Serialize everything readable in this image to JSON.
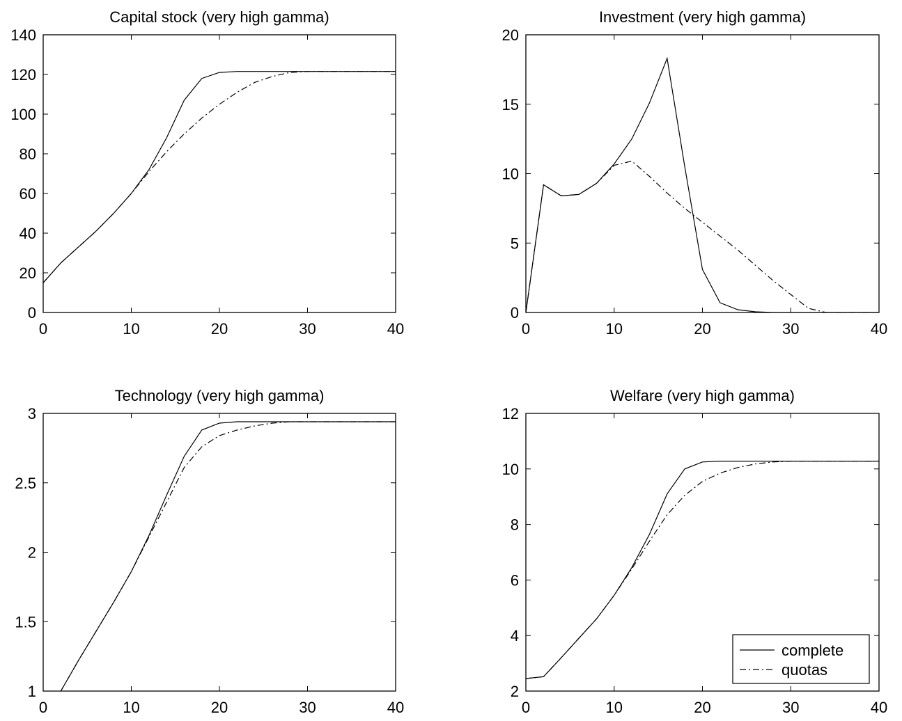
{
  "chart_data": [
    {
      "type": "line",
      "title": "Capital stock (very high gamma)",
      "xlim": [
        0,
        40
      ],
      "ylim": [
        0,
        140
      ],
      "xticks": [
        0,
        10,
        20,
        30,
        40
      ],
      "yticks": [
        0,
        20,
        40,
        60,
        80,
        100,
        120,
        140
      ],
      "grid": false,
      "x": [
        0,
        2,
        4,
        6,
        8,
        10,
        12,
        14,
        16,
        18,
        20,
        22,
        24,
        26,
        28,
        30,
        32,
        34,
        36,
        38,
        40
      ],
      "series": [
        {
          "name": "complete",
          "style": "solid",
          "values": [
            15,
            25,
            33,
            41,
            50,
            60,
            72,
            88,
            107,
            118,
            121,
            121.5,
            121.5,
            121.5,
            121.5,
            121.5,
            121.5,
            121.5,
            121.5,
            121.5,
            121.5
          ]
        },
        {
          "name": "quotas",
          "style": "dashdot",
          "values": [
            15,
            25,
            33,
            41,
            50,
            60,
            71,
            81,
            90,
            98,
            105,
            111,
            116,
            119,
            121,
            121.5,
            121.5,
            121.5,
            121.5,
            121.5,
            121.5
          ]
        }
      ]
    },
    {
      "type": "line",
      "title": "Investment (very high gamma)",
      "xlim": [
        0,
        40
      ],
      "ylim": [
        0,
        20
      ],
      "xticks": [
        0,
        10,
        20,
        30,
        40
      ],
      "yticks": [
        0,
        5,
        10,
        15,
        20
      ],
      "grid": false,
      "x": [
        0,
        2,
        4,
        6,
        8,
        10,
        12,
        14,
        16,
        18,
        20,
        22,
        24,
        26,
        28,
        30,
        32,
        34,
        36,
        38,
        40
      ],
      "series": [
        {
          "name": "complete",
          "style": "solid",
          "values": [
            0,
            9.2,
            8.4,
            8.5,
            9.3,
            10.7,
            12.5,
            15.1,
            18.3,
            10.5,
            3.1,
            0.7,
            0.2,
            0.05,
            0,
            0,
            0,
            0,
            0,
            0,
            0
          ]
        },
        {
          "name": "quotas",
          "style": "dashdot",
          "values": [
            0,
            9.2,
            8.4,
            8.5,
            9.3,
            10.6,
            10.9,
            9.8,
            8.6,
            7.5,
            6.5,
            5.5,
            4.5,
            3.4,
            2.3,
            1.3,
            0.3,
            0,
            0,
            0,
            0
          ]
        }
      ]
    },
    {
      "type": "line",
      "title": "Technology (very high gamma)",
      "xlim": [
        0,
        40
      ],
      "ylim": [
        1,
        3
      ],
      "xticks": [
        0,
        10,
        20,
        30,
        40
      ],
      "yticks": [
        1,
        1.5,
        2,
        2.5,
        3
      ],
      "grid": false,
      "x": [
        0,
        2,
        4,
        6,
        8,
        10,
        12,
        14,
        16,
        18,
        20,
        22,
        24,
        26,
        28,
        30,
        32,
        34,
        36,
        38,
        40
      ],
      "series": [
        {
          "name": "complete",
          "style": "solid",
          "values": [
            0.85,
            1.0,
            1.22,
            1.43,
            1.64,
            1.86,
            2.12,
            2.41,
            2.69,
            2.88,
            2.93,
            2.94,
            2.94,
            2.94,
            2.94,
            2.94,
            2.94,
            2.94,
            2.94,
            2.94,
            2.94
          ]
        },
        {
          "name": "quotas",
          "style": "dashdot",
          "values": [
            0.85,
            1.0,
            1.22,
            1.43,
            1.64,
            1.86,
            2.11,
            2.36,
            2.61,
            2.76,
            2.84,
            2.88,
            2.91,
            2.93,
            2.94,
            2.94,
            2.94,
            2.94,
            2.94,
            2.94,
            2.94
          ]
        }
      ]
    },
    {
      "type": "line",
      "title": "Welfare (very high gamma)",
      "xlim": [
        0,
        40
      ],
      "ylim": [
        2,
        12
      ],
      "xticks": [
        0,
        10,
        20,
        30,
        40
      ],
      "yticks": [
        2,
        4,
        6,
        8,
        10,
        12
      ],
      "grid": false,
      "legend": {
        "position": "bottom-right",
        "entries": [
          "complete",
          "quotas"
        ]
      },
      "x": [
        0,
        2,
        4,
        6,
        8,
        10,
        12,
        14,
        16,
        18,
        20,
        22,
        24,
        26,
        28,
        30,
        32,
        34,
        36,
        38,
        40
      ],
      "series": [
        {
          "name": "complete",
          "style": "solid",
          "values": [
            2.45,
            2.52,
            3.2,
            3.9,
            4.6,
            5.45,
            6.45,
            7.65,
            9.1,
            10.0,
            10.25,
            10.28,
            10.28,
            10.28,
            10.28,
            10.28,
            10.28,
            10.28,
            10.28,
            10.28,
            10.28
          ]
        },
        {
          "name": "quotas",
          "style": "dashdot",
          "values": [
            2.45,
            2.52,
            3.2,
            3.9,
            4.6,
            5.45,
            6.4,
            7.4,
            8.35,
            9.05,
            9.55,
            9.85,
            10.05,
            10.18,
            10.25,
            10.28,
            10.28,
            10.28,
            10.28,
            10.28,
            10.28
          ]
        }
      ]
    }
  ]
}
